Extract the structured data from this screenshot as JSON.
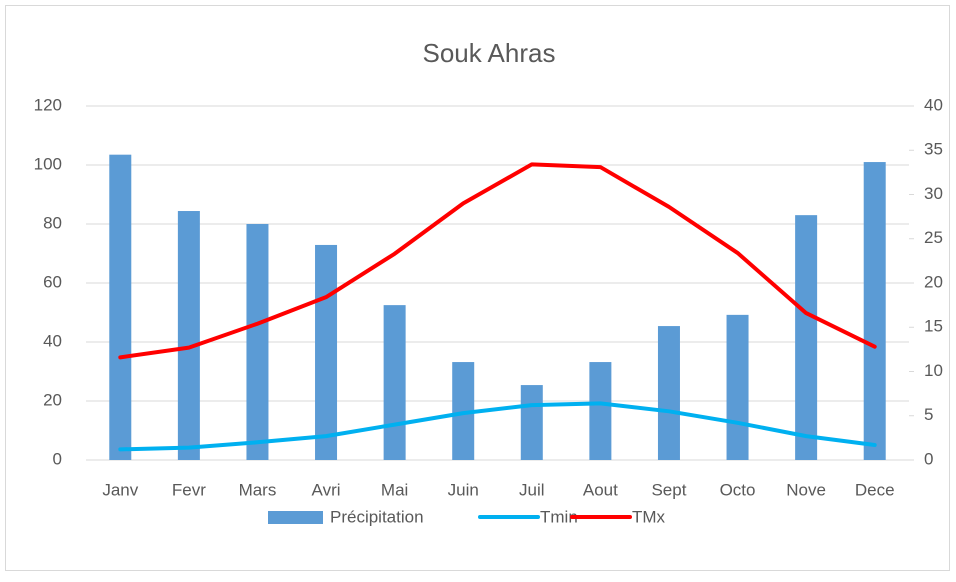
{
  "chart_data": {
    "type": "bar-line",
    "title": "Souk Ahras",
    "categories": [
      "Janv",
      "Fevr",
      "Mars",
      "Avri",
      "Mai",
      "Juin",
      "Juil",
      "Aout",
      "Sept",
      "Octo",
      "Nove",
      "Dece"
    ],
    "series": [
      {
        "name": "Précipitation",
        "type": "bar",
        "color": "#5b9bd5",
        "values": [
          103.5,
          84.4,
          80,
          72.9,
          52.5,
          33.2,
          25.4,
          33.2,
          45.4,
          49.2,
          83,
          101
        ]
      },
      {
        "name": "Tmin",
        "type": "line",
        "axis": "y2",
        "color": "#00b0f0",
        "values": [
          1.2,
          1.4,
          2.0,
          2.7,
          4.0,
          5.3,
          6.2,
          6.4,
          5.5,
          4.2,
          2.7,
          1.7
        ]
      },
      {
        "name": "TMx",
        "type": "line",
        "axis": "y2",
        "color": "#ff0000",
        "values": [
          11.6,
          12.7,
          15.4,
          18.4,
          23.3,
          29.0,
          33.4,
          33.1,
          28.6,
          23.4,
          16.6,
          12.8
        ]
      }
    ],
    "ylim": [
      0,
      120
    ],
    "yticks": [
      0,
      20,
      40,
      60,
      80,
      100,
      120
    ],
    "y2lim": [
      0,
      40
    ],
    "y2ticks": [
      0,
      5,
      10,
      15,
      20,
      25,
      30,
      35,
      40
    ],
    "grid": true,
    "legend": "bottom"
  }
}
